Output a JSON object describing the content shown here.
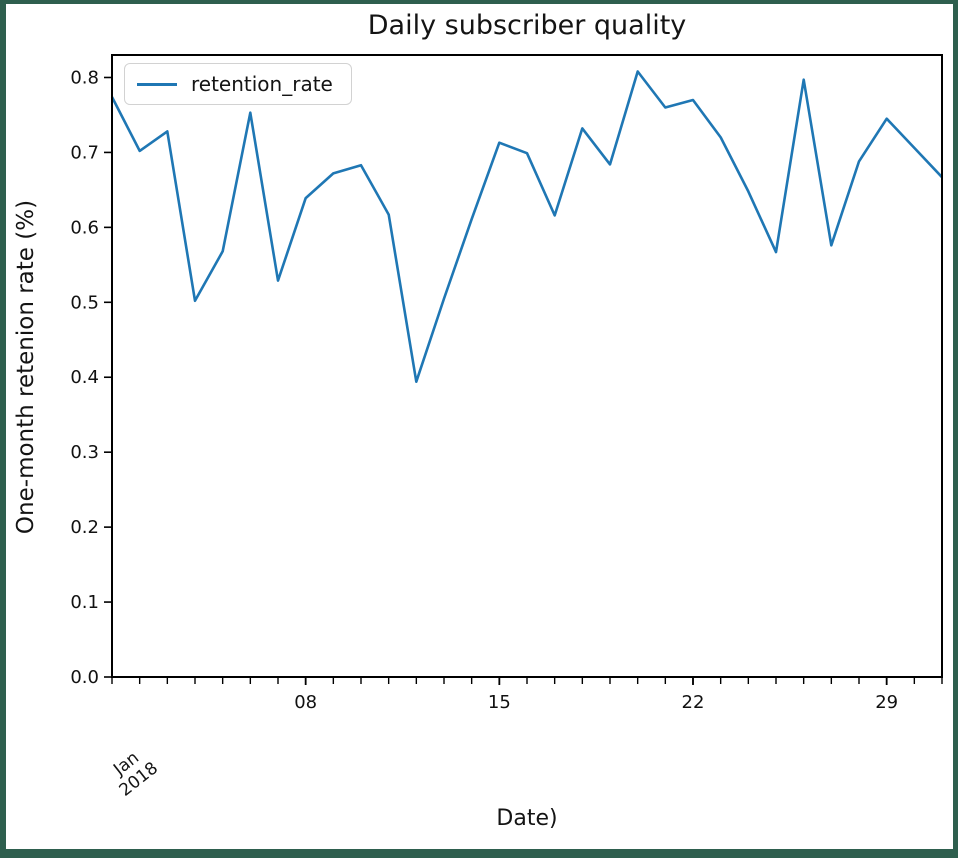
{
  "chart_data": {
    "type": "line",
    "title": "Daily subscriber quality",
    "xlabel": "Date)",
    "ylabel": "One-month retenion rate (%)",
    "x_period": "January 2018",
    "x_days": [
      1,
      2,
      3,
      4,
      5,
      6,
      7,
      8,
      9,
      10,
      11,
      12,
      13,
      14,
      15,
      16,
      17,
      18,
      19,
      20,
      21,
      22,
      23,
      24,
      25,
      26,
      27,
      28,
      29,
      30,
      31
    ],
    "series": [
      {
        "name": "retention_rate",
        "color": "#1f77b4",
        "values": [
          0.774,
          0.702,
          0.728,
          0.502,
          0.568,
          0.753,
          0.529,
          0.639,
          0.672,
          0.683,
          0.617,
          0.394,
          0.505,
          0.611,
          0.713,
          0.699,
          0.616,
          0.732,
          0.684,
          0.808,
          0.76,
          0.77,
          0.72,
          0.648,
          0.567,
          0.797,
          0.576,
          0.688,
          0.745,
          0.706,
          0.667
        ]
      }
    ],
    "ylim": [
      0,
      0.83
    ],
    "yticks": [
      "0.0",
      "0.1",
      "0.2",
      "0.3",
      "0.4",
      "0.5",
      "0.6",
      "0.7",
      "0.8"
    ],
    "x_major_ticks": [
      {
        "day": 8,
        "label": "08"
      },
      {
        "day": 15,
        "label": "15"
      },
      {
        "day": 22,
        "label": "22"
      },
      {
        "day": 29,
        "label": "29"
      }
    ],
    "x_corner_label": {
      "line1": "Jan",
      "line2": "2018"
    },
    "grid": false,
    "legend": {
      "position": "upper left",
      "entries": [
        "retention_rate"
      ]
    },
    "frame_border_color": "#2e5f4e",
    "axis_color": "#000000"
  }
}
